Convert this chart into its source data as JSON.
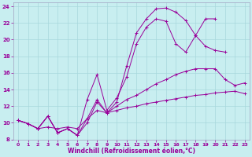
{
  "xlabel": "Windchill (Refroidissement éolien,°C)",
  "bg_color": "#c8eef0",
  "line_color": "#990099",
  "grid_color": "#a8d8dc",
  "xlim": [
    -0.5,
    23.5
  ],
  "ylim": [
    8,
    24.5
  ],
  "yticks": [
    8,
    10,
    12,
    14,
    16,
    18,
    20,
    22,
    24
  ],
  "xticks": [
    0,
    1,
    2,
    3,
    4,
    5,
    6,
    7,
    8,
    9,
    10,
    11,
    12,
    13,
    14,
    15,
    16,
    17,
    18,
    19,
    20,
    21,
    22,
    23
  ],
  "lines": [
    {
      "x": [
        0,
        1,
        2,
        3,
        4,
        5,
        6,
        7,
        8,
        9,
        10,
        11,
        12,
        13,
        14,
        15,
        16,
        17,
        18,
        19,
        20,
        21,
        22,
        23
      ],
      "y": [
        10.3,
        9.9,
        9.3,
        9.5,
        9.3,
        9.5,
        9.3,
        10.5,
        11.5,
        11.2,
        11.5,
        11.8,
        12.0,
        12.3,
        12.5,
        12.7,
        12.9,
        13.1,
        13.3,
        13.4,
        13.6,
        13.7,
        13.8,
        13.5
      ]
    },
    {
      "x": [
        0,
        1,
        2,
        3,
        4,
        5,
        6,
        7,
        8,
        9,
        10,
        11,
        12,
        13,
        14,
        15,
        16,
        17,
        18,
        19,
        20,
        21,
        22,
        23
      ],
      "y": [
        10.3,
        9.9,
        9.3,
        10.8,
        8.8,
        9.3,
        8.5,
        10.0,
        12.5,
        11.2,
        12.0,
        12.8,
        13.3,
        14.0,
        14.7,
        15.2,
        15.8,
        16.2,
        16.5,
        16.5,
        16.5,
        15.2,
        14.5,
        14.8
      ]
    },
    {
      "x": [
        0,
        1,
        2,
        3,
        4,
        5,
        6,
        7,
        8,
        9,
        10,
        11,
        12,
        13,
        14,
        15,
        16,
        17,
        18,
        19,
        20,
        21,
        22,
        23
      ],
      "y": [
        10.3,
        9.9,
        9.3,
        10.8,
        8.8,
        9.3,
        8.5,
        12.8,
        15.8,
        11.5,
        13.0,
        15.5,
        19.5,
        21.5,
        22.5,
        22.2,
        19.5,
        18.5,
        20.5,
        22.5,
        22.5,
        null,
        null,
        null
      ]
    },
    {
      "x": [
        0,
        1,
        2,
        3,
        4,
        5,
        6,
        7,
        8,
        9,
        10,
        11,
        12,
        13,
        14,
        15,
        16,
        17,
        18,
        19,
        20,
        21
      ],
      "y": [
        10.3,
        9.9,
        9.3,
        10.8,
        8.8,
        9.3,
        8.5,
        10.5,
        12.8,
        11.2,
        12.5,
        16.8,
        20.8,
        22.5,
        23.7,
        23.8,
        23.3,
        22.3,
        20.5,
        19.2,
        18.7,
        18.5
      ]
    }
  ]
}
